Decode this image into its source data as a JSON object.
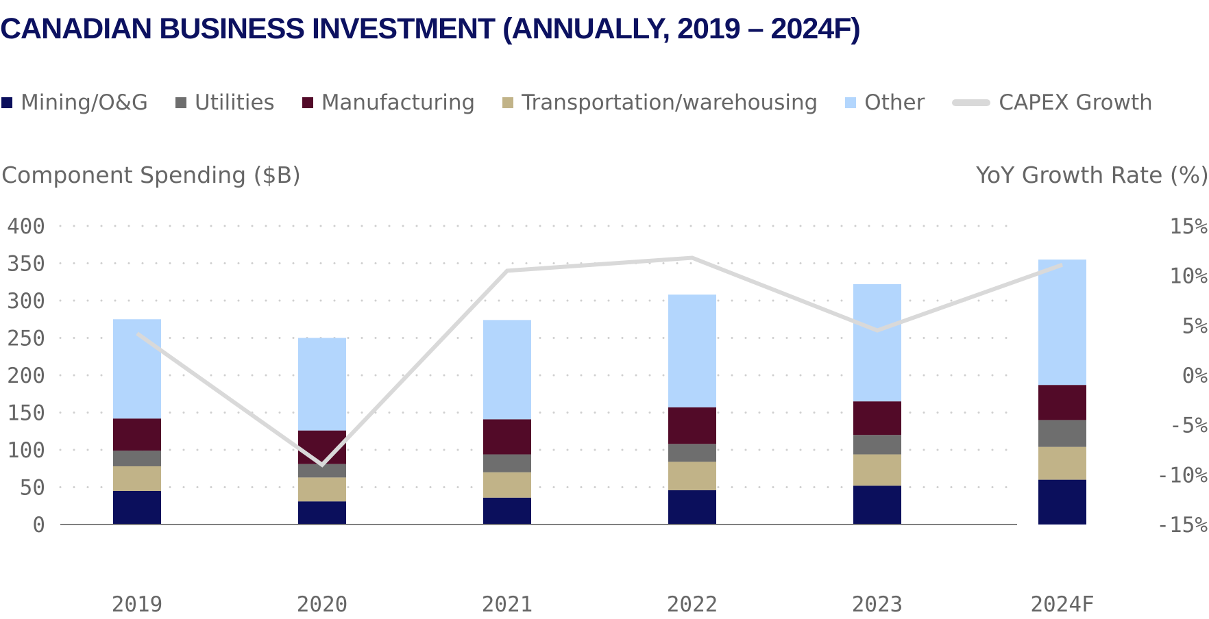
{
  "title": "CANADIAN BUSINESS INVESTMENT (ANNUALLY, 2019 – 2024F)",
  "legend": [
    {
      "label": "Mining/O&G",
      "color": "#0b0f5c",
      "kind": "box"
    },
    {
      "label": "Utilities",
      "color": "#6e6e6e",
      "kind": "box"
    },
    {
      "label": "Manufacturing",
      "color": "#520a28",
      "kind": "box"
    },
    {
      "label": "Transportation/warehousing",
      "color": "#c1b388",
      "kind": "box"
    },
    {
      "label": "Other",
      "color": "#b3d6fd",
      "kind": "box"
    },
    {
      "label": "CAPEX Growth",
      "color": "#d9d9d9",
      "kind": "line"
    }
  ],
  "chart_data": {
    "type": "bar",
    "stacked": true,
    "title": "CANADIAN BUSINESS INVESTMENT (ANNUALLY, 2019 – 2024F)",
    "categories": [
      "2019",
      "2020",
      "2021",
      "2022",
      "2023",
      "2024F"
    ],
    "ylabel": "Component Spending ($B)",
    "ylim": [
      0,
      400
    ],
    "yticks": [
      0,
      50,
      100,
      150,
      200,
      250,
      300,
      350,
      400
    ],
    "y2label": "YoY Growth Rate (%)",
    "y2lim": [
      -15,
      15
    ],
    "y2ticks": [
      -15,
      -10,
      -5,
      0,
      5,
      10,
      15
    ],
    "y2ticklabels": [
      "-15%",
      "-10%",
      "-5%",
      "0%",
      "5%",
      "10%",
      "15%"
    ],
    "grid": "dotted horizontal",
    "series": [
      {
        "name": "Mining/O&G",
        "color": "#0b0f5c",
        "values": [
          45,
          31,
          36,
          46,
          52,
          60
        ]
      },
      {
        "name": "Transportation/warehousing",
        "color": "#c1b388",
        "values": [
          33,
          32,
          34,
          38,
          42,
          44
        ]
      },
      {
        "name": "Utilities",
        "color": "#6e6e6e",
        "values": [
          21,
          18,
          24,
          24,
          26,
          36
        ]
      },
      {
        "name": "Manufacturing",
        "color": "#520a28",
        "values": [
          43,
          45,
          47,
          49,
          45,
          47
        ]
      },
      {
        "name": "Other",
        "color": "#b3d6fd",
        "values": [
          133,
          124,
          133,
          151,
          157,
          168
        ]
      }
    ],
    "line": {
      "name": "CAPEX Growth",
      "color": "#d9d9d9",
      "axis": "right",
      "values": [
        4.2,
        -9.0,
        10.5,
        11.8,
        4.5,
        11.1
      ]
    }
  }
}
